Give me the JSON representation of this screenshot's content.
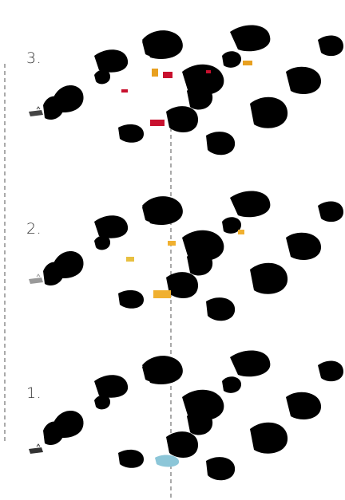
{
  "layers": [
    {
      "label": "3.",
      "variant": "pale",
      "highlights": [
        "#e8a020",
        "#c8102e",
        "#f0c040",
        "#d94a8a"
      ]
    },
    {
      "label": "2.",
      "variant": "pale",
      "highlights": [
        "#f0b030",
        "#e8c040",
        "#d8a028"
      ]
    },
    {
      "label": "1.",
      "variant": "base",
      "highlights": [
        "#8cc6d8"
      ]
    }
  ],
  "colors": {
    "river": "#2e9a58",
    "river_pale": "#9ccaa4",
    "forest": "#3c9c3c",
    "vegetation": "#cfe7c4",
    "vegetation_pale": "#dff0d8",
    "guide_line": "#555555"
  },
  "icons": [
    "compass-icon"
  ]
}
